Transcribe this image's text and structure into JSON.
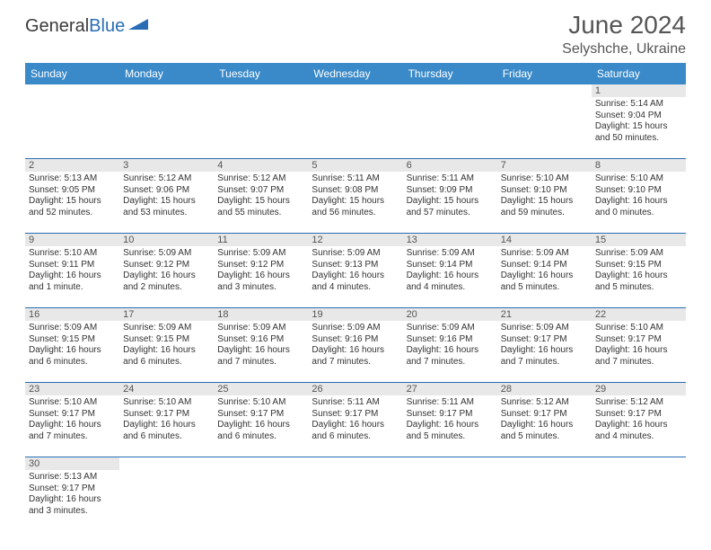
{
  "logo": {
    "text1": "General",
    "text2": "Blue",
    "icon_color": "#2a6db5"
  },
  "header": {
    "month_title": "June 2024",
    "location": "Selyshche, Ukraine"
  },
  "colors": {
    "header_bg": "#3a8ac9",
    "header_text": "#ffffff",
    "daynum_bg": "#e8e8e8",
    "border": "#2a6db5",
    "body_text": "#333333"
  },
  "days_of_week": [
    "Sunday",
    "Monday",
    "Tuesday",
    "Wednesday",
    "Thursday",
    "Friday",
    "Saturday"
  ],
  "weeks": [
    [
      {
        "num": "",
        "lines": []
      },
      {
        "num": "",
        "lines": []
      },
      {
        "num": "",
        "lines": []
      },
      {
        "num": "",
        "lines": []
      },
      {
        "num": "",
        "lines": []
      },
      {
        "num": "",
        "lines": []
      },
      {
        "num": "1",
        "lines": [
          "Sunrise: 5:14 AM",
          "Sunset: 9:04 PM",
          "Daylight: 15 hours",
          "and 50 minutes."
        ]
      }
    ],
    [
      {
        "num": "2",
        "lines": [
          "Sunrise: 5:13 AM",
          "Sunset: 9:05 PM",
          "Daylight: 15 hours",
          "and 52 minutes."
        ]
      },
      {
        "num": "3",
        "lines": [
          "Sunrise: 5:12 AM",
          "Sunset: 9:06 PM",
          "Daylight: 15 hours",
          "and 53 minutes."
        ]
      },
      {
        "num": "4",
        "lines": [
          "Sunrise: 5:12 AM",
          "Sunset: 9:07 PM",
          "Daylight: 15 hours",
          "and 55 minutes."
        ]
      },
      {
        "num": "5",
        "lines": [
          "Sunrise: 5:11 AM",
          "Sunset: 9:08 PM",
          "Daylight: 15 hours",
          "and 56 minutes."
        ]
      },
      {
        "num": "6",
        "lines": [
          "Sunrise: 5:11 AM",
          "Sunset: 9:09 PM",
          "Daylight: 15 hours",
          "and 57 minutes."
        ]
      },
      {
        "num": "7",
        "lines": [
          "Sunrise: 5:10 AM",
          "Sunset: 9:10 PM",
          "Daylight: 15 hours",
          "and 59 minutes."
        ]
      },
      {
        "num": "8",
        "lines": [
          "Sunrise: 5:10 AM",
          "Sunset: 9:10 PM",
          "Daylight: 16 hours",
          "and 0 minutes."
        ]
      }
    ],
    [
      {
        "num": "9",
        "lines": [
          "Sunrise: 5:10 AM",
          "Sunset: 9:11 PM",
          "Daylight: 16 hours",
          "and 1 minute."
        ]
      },
      {
        "num": "10",
        "lines": [
          "Sunrise: 5:09 AM",
          "Sunset: 9:12 PM",
          "Daylight: 16 hours",
          "and 2 minutes."
        ]
      },
      {
        "num": "11",
        "lines": [
          "Sunrise: 5:09 AM",
          "Sunset: 9:12 PM",
          "Daylight: 16 hours",
          "and 3 minutes."
        ]
      },
      {
        "num": "12",
        "lines": [
          "Sunrise: 5:09 AM",
          "Sunset: 9:13 PM",
          "Daylight: 16 hours",
          "and 4 minutes."
        ]
      },
      {
        "num": "13",
        "lines": [
          "Sunrise: 5:09 AM",
          "Sunset: 9:14 PM",
          "Daylight: 16 hours",
          "and 4 minutes."
        ]
      },
      {
        "num": "14",
        "lines": [
          "Sunrise: 5:09 AM",
          "Sunset: 9:14 PM",
          "Daylight: 16 hours",
          "and 5 minutes."
        ]
      },
      {
        "num": "15",
        "lines": [
          "Sunrise: 5:09 AM",
          "Sunset: 9:15 PM",
          "Daylight: 16 hours",
          "and 5 minutes."
        ]
      }
    ],
    [
      {
        "num": "16",
        "lines": [
          "Sunrise: 5:09 AM",
          "Sunset: 9:15 PM",
          "Daylight: 16 hours",
          "and 6 minutes."
        ]
      },
      {
        "num": "17",
        "lines": [
          "Sunrise: 5:09 AM",
          "Sunset: 9:15 PM",
          "Daylight: 16 hours",
          "and 6 minutes."
        ]
      },
      {
        "num": "18",
        "lines": [
          "Sunrise: 5:09 AM",
          "Sunset: 9:16 PM",
          "Daylight: 16 hours",
          "and 7 minutes."
        ]
      },
      {
        "num": "19",
        "lines": [
          "Sunrise: 5:09 AM",
          "Sunset: 9:16 PM",
          "Daylight: 16 hours",
          "and 7 minutes."
        ]
      },
      {
        "num": "20",
        "lines": [
          "Sunrise: 5:09 AM",
          "Sunset: 9:16 PM",
          "Daylight: 16 hours",
          "and 7 minutes."
        ]
      },
      {
        "num": "21",
        "lines": [
          "Sunrise: 5:09 AM",
          "Sunset: 9:17 PM",
          "Daylight: 16 hours",
          "and 7 minutes."
        ]
      },
      {
        "num": "22",
        "lines": [
          "Sunrise: 5:10 AM",
          "Sunset: 9:17 PM",
          "Daylight: 16 hours",
          "and 7 minutes."
        ]
      }
    ],
    [
      {
        "num": "23",
        "lines": [
          "Sunrise: 5:10 AM",
          "Sunset: 9:17 PM",
          "Daylight: 16 hours",
          "and 7 minutes."
        ]
      },
      {
        "num": "24",
        "lines": [
          "Sunrise: 5:10 AM",
          "Sunset: 9:17 PM",
          "Daylight: 16 hours",
          "and 6 minutes."
        ]
      },
      {
        "num": "25",
        "lines": [
          "Sunrise: 5:10 AM",
          "Sunset: 9:17 PM",
          "Daylight: 16 hours",
          "and 6 minutes."
        ]
      },
      {
        "num": "26",
        "lines": [
          "Sunrise: 5:11 AM",
          "Sunset: 9:17 PM",
          "Daylight: 16 hours",
          "and 6 minutes."
        ]
      },
      {
        "num": "27",
        "lines": [
          "Sunrise: 5:11 AM",
          "Sunset: 9:17 PM",
          "Daylight: 16 hours",
          "and 5 minutes."
        ]
      },
      {
        "num": "28",
        "lines": [
          "Sunrise: 5:12 AM",
          "Sunset: 9:17 PM",
          "Daylight: 16 hours",
          "and 5 minutes."
        ]
      },
      {
        "num": "29",
        "lines": [
          "Sunrise: 5:12 AM",
          "Sunset: 9:17 PM",
          "Daylight: 16 hours",
          "and 4 minutes."
        ]
      }
    ],
    [
      {
        "num": "30",
        "lines": [
          "Sunrise: 5:13 AM",
          "Sunset: 9:17 PM",
          "Daylight: 16 hours",
          "and 3 minutes."
        ]
      },
      {
        "num": "",
        "lines": []
      },
      {
        "num": "",
        "lines": []
      },
      {
        "num": "",
        "lines": []
      },
      {
        "num": "",
        "lines": []
      },
      {
        "num": "",
        "lines": []
      },
      {
        "num": "",
        "lines": []
      }
    ]
  ]
}
